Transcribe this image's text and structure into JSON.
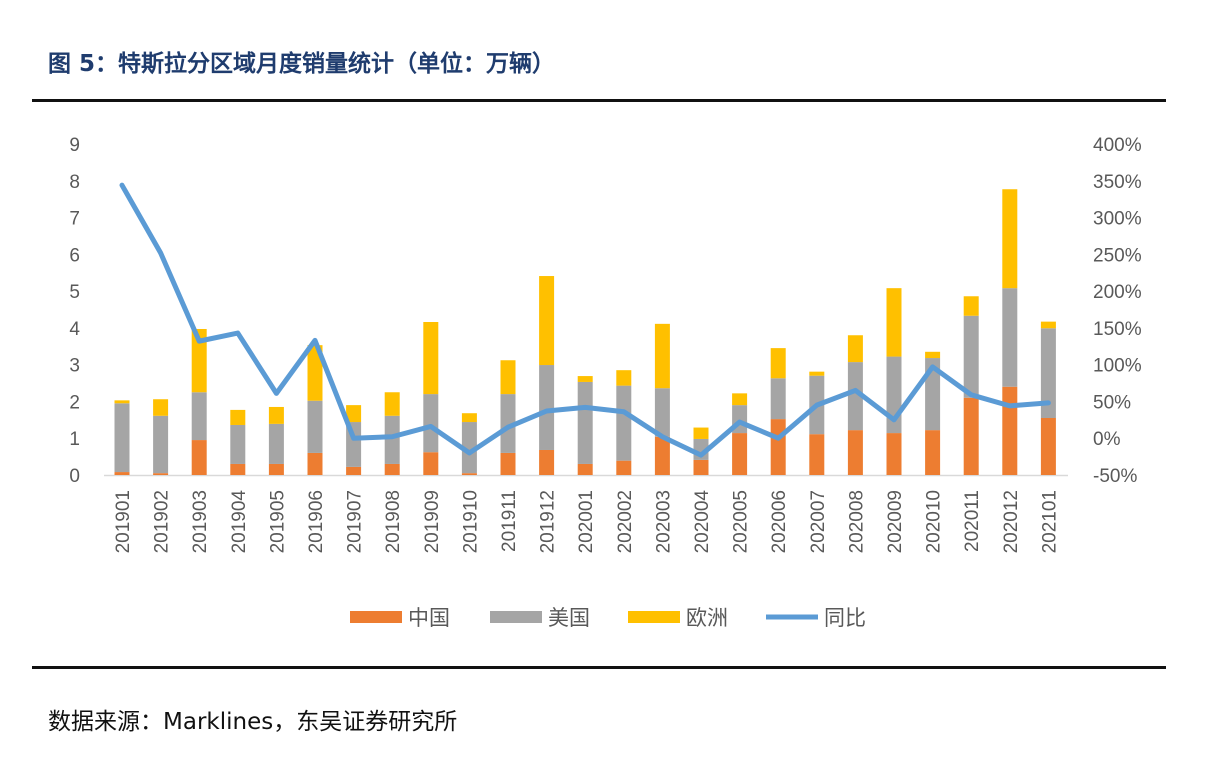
{
  "title": "图 5：特斯拉分区域月度销量统计（单位：万辆）",
  "source": "数据来源：Marklines，东吴证券研究所",
  "colors": {
    "china": "#ed7d31",
    "usa": "#a5a5a5",
    "europe": "#ffc000",
    "yoy": "#5b9bd5"
  },
  "chart_data": {
    "type": "bar",
    "stacked": true,
    "categories": [
      "201901",
      "201902",
      "201903",
      "201904",
      "201905",
      "201906",
      "201907",
      "201908",
      "201909",
      "201910",
      "201911",
      "201912",
      "202001",
      "202002",
      "202003",
      "202004",
      "202005",
      "202006",
      "202007",
      "202008",
      "202009",
      "202010",
      "202011",
      "202012",
      "202101"
    ],
    "series": [
      {
        "name": "中国",
        "axis": "left",
        "type": "bar",
        "values": [
          0.08,
          0.05,
          0.95,
          0.3,
          0.3,
          0.6,
          0.22,
          0.3,
          0.62,
          0.05,
          0.6,
          0.68,
          0.3,
          0.39,
          1.04,
          0.41,
          1.14,
          1.52,
          1.11,
          1.22,
          1.14,
          1.22,
          2.1,
          2.4,
          1.55
        ]
      },
      {
        "name": "美国",
        "axis": "left",
        "type": "bar",
        "values": [
          1.87,
          1.56,
          1.3,
          1.06,
          1.09,
          1.42,
          1.22,
          1.31,
          1.58,
          1.39,
          1.6,
          2.31,
          2.23,
          2.04,
          1.32,
          0.57,
          0.76,
          1.11,
          1.59,
          1.85,
          2.08,
          1.96,
          2.23,
          2.68,
          2.44
        ]
      },
      {
        "name": "欧洲",
        "axis": "left",
        "type": "bar",
        "values": [
          0.08,
          0.45,
          1.72,
          0.41,
          0.46,
          1.51,
          0.46,
          0.64,
          1.96,
          0.24,
          0.92,
          2.42,
          0.16,
          0.42,
          1.75,
          0.31,
          0.32,
          0.82,
          0.11,
          0.73,
          1.86,
          0.17,
          0.53,
          2.69,
          0.18
        ]
      },
      {
        "name": "同比",
        "axis": "right",
        "type": "line",
        "values": [
          344,
          252,
          132,
          143,
          61,
          133,
          0,
          2,
          16,
          -20,
          15,
          37,
          42,
          36,
          2,
          -23,
          22,
          0,
          45,
          65,
          25,
          97,
          59,
          44,
          48
        ]
      }
    ],
    "ylim": [
      0,
      9
    ],
    "yticks": [
      "0",
      "1",
      "2",
      "3",
      "4",
      "5",
      "6",
      "7",
      "8",
      "9"
    ],
    "y2lim": [
      -50,
      400
    ],
    "y2ticks": [
      "-50%",
      "0%",
      "50%",
      "100%",
      "150%",
      "200%",
      "250%",
      "300%",
      "350%",
      "400%"
    ],
    "grid": false,
    "legend": "bottom"
  }
}
